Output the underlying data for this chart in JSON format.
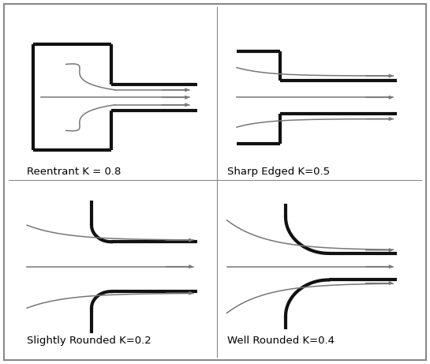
{
  "background_color": "#ffffff",
  "border_color": "#888888",
  "pipe_color": "#111111",
  "flow_color": "#777777",
  "pipe_lw": 3.0,
  "flow_lw": 1.1,
  "labels": [
    "Reentrant K = 0.8",
    "Sharp Edged K=0.5",
    "Slightly Rounded K=0.2",
    "Well Rounded K=0.4"
  ],
  "label_fontsize": 9.5
}
